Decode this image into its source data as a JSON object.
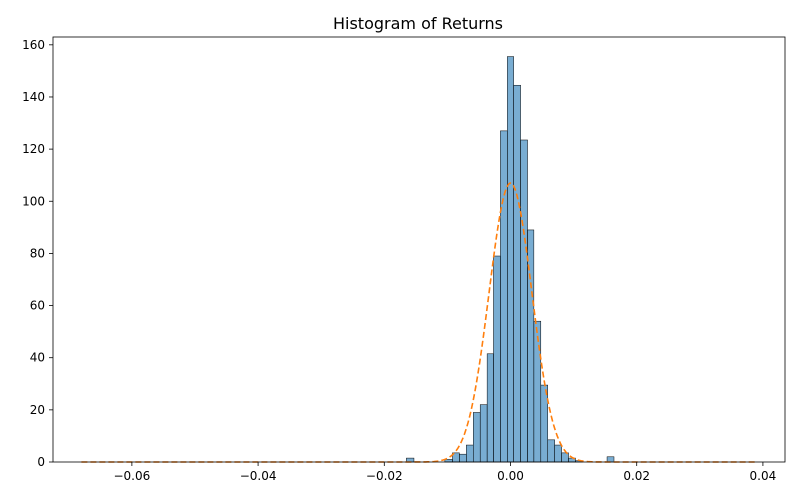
{
  "chart_data": {
    "type": "bar",
    "title": "Histogram of Returns",
    "xlabel": "",
    "ylabel": "",
    "xlim": [
      -0.0725,
      0.0435
    ],
    "ylim": [
      0,
      163
    ],
    "grid": false,
    "x_ticks": [
      -0.06,
      -0.04,
      -0.02,
      0.0,
      0.02,
      0.04
    ],
    "x_tick_labels": [
      "−0.06",
      "−0.04",
      "−0.02",
      "0.00",
      "0.02",
      "0.04"
    ],
    "y_ticks": [
      0,
      20,
      40,
      60,
      80,
      100,
      120,
      140,
      160
    ],
    "y_tick_labels": [
      "0",
      "20",
      "40",
      "60",
      "80",
      "100",
      "120",
      "140",
      "160"
    ],
    "bar_color": "#1f77b4",
    "bar_alpha": 0.6,
    "bar_edge_color": "#000000",
    "bins": [
      {
        "x0": -0.0165,
        "x1": -0.0153,
        "count": 1.5
      },
      {
        "x0": -0.0104,
        "x1": -0.0092,
        "count": 1
      },
      {
        "x0": -0.0092,
        "x1": -0.0081,
        "count": 3.5
      },
      {
        "x0": -0.0081,
        "x1": -0.007,
        "count": 3
      },
      {
        "x0": -0.007,
        "x1": -0.0059,
        "count": 6.5
      },
      {
        "x0": -0.0059,
        "x1": -0.0048,
        "count": 19
      },
      {
        "x0": -0.0048,
        "x1": -0.0037,
        "count": 22
      },
      {
        "x0": -0.0037,
        "x1": -0.0027,
        "count": 41.5
      },
      {
        "x0": -0.0027,
        "x1": -0.0016,
        "count": 79
      },
      {
        "x0": -0.0016,
        "x1": -0.0005,
        "count": 127
      },
      {
        "x0": -0.0005,
        "x1": 0.0005,
        "count": 155.5
      },
      {
        "x0": 0.0005,
        "x1": 0.0016,
        "count": 144.5
      },
      {
        "x0": 0.0016,
        "x1": 0.0027,
        "count": 123.5
      },
      {
        "x0": 0.0027,
        "x1": 0.0037,
        "count": 89
      },
      {
        "x0": 0.0037,
        "x1": 0.0048,
        "count": 54
      },
      {
        "x0": 0.0048,
        "x1": 0.0059,
        "count": 29.5
      },
      {
        "x0": 0.0059,
        "x1": 0.007,
        "count": 8.5
      },
      {
        "x0": 0.007,
        "x1": 0.0081,
        "count": 6.5
      },
      {
        "x0": 0.0081,
        "x1": 0.0092,
        "count": 3.5
      },
      {
        "x0": 0.0092,
        "x1": 0.0103,
        "count": 1.5
      },
      {
        "x0": 0.0103,
        "x1": 0.0114,
        "count": 0.5
      },
      {
        "x0": 0.0153,
        "x1": 0.0164,
        "count": 2
      }
    ],
    "normal_curve": {
      "mean": 0.0,
      "std": 0.0034,
      "peak": 107,
      "x_range": [
        -0.068,
        0.039
      ],
      "color": "#ff7f0e",
      "style": "dashed"
    }
  }
}
